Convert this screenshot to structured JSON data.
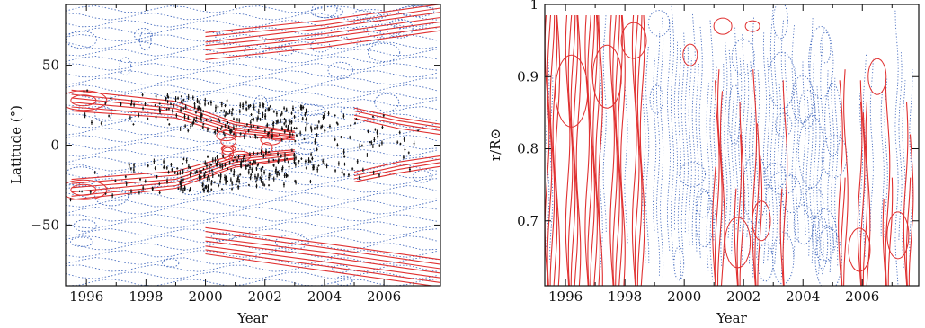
{
  "chart_data": [
    {
      "type": "contour",
      "xlabel": "Year",
      "ylabel": "Latitude (°)",
      "xlim": [
        1995.3,
        2007.9
      ],
      "ylim": [
        -88,
        88
      ],
      "xticks": [
        1996,
        1998,
        2000,
        2002,
        2004,
        2006
      ],
      "xtick_labels": [
        "1996",
        "1998",
        "2000",
        "2002",
        "2004",
        "2006"
      ],
      "yticks": [
        -50,
        0,
        50
      ],
      "ytick_labels": [
        "−50",
        "0",
        "50"
      ],
      "series": [
        {
          "name": "",
          "style": "solid",
          "color": "#e03030"
        },
        {
          "name": "",
          "style": "dotted",
          "color": "#4a6fc0"
        },
        {
          "name": "",
          "style": "markers",
          "color": "#111111"
        }
      ],
      "features": {
        "red_branches_upper": [
          [
            1995.5,
            28
          ],
          [
            1999,
            22
          ],
          [
            2001,
            10
          ],
          [
            2003,
            6
          ]
        ],
        "red_branches_lower": [
          [
            1995.5,
            -28
          ],
          [
            1999,
            -22
          ],
          [
            2001,
            -10
          ],
          [
            2003,
            -6
          ]
        ],
        "red_polar_upper": [
          [
            2000,
            62
          ],
          [
            2004,
            70
          ],
          [
            2007.9,
            80
          ]
        ],
        "red_polar_lower": [
          [
            2000,
            -60
          ],
          [
            2004,
            -70
          ],
          [
            2007.9,
            -80
          ]
        ],
        "red_late_bands": [
          [
            2005,
            20
          ],
          [
            2007.9,
            10
          ],
          [
            2005,
            -20
          ],
          [
            2007.9,
            -10
          ]
        ],
        "black_scatter_extent": {
          "x": [
            1995.4,
            2007.2
          ],
          "y": [
            -45,
            42
          ]
        }
      }
    },
    {
      "type": "contour",
      "xlabel": "Year",
      "ylabel": "r/R⊙",
      "xlim": [
        1995.3,
        2007.9
      ],
      "ylim": [
        0.61,
        1.0
      ],
      "xticks": [
        1996,
        1998,
        2000,
        2002,
        2004,
        2006
      ],
      "xtick_labels": [
        "1996",
        "1998",
        "2000",
        "2002",
        "2004",
        "2006"
      ],
      "yticks": [
        0.7,
        0.8,
        0.9,
        1.0
      ],
      "ytick_labels": [
        "0.7",
        "0.8",
        "0.9",
        "1"
      ],
      "series": [
        {
          "name": "",
          "style": "solid",
          "color": "#e03030"
        },
        {
          "name": "",
          "style": "dotted",
          "color": "#4a6fc0"
        }
      ]
    }
  ]
}
